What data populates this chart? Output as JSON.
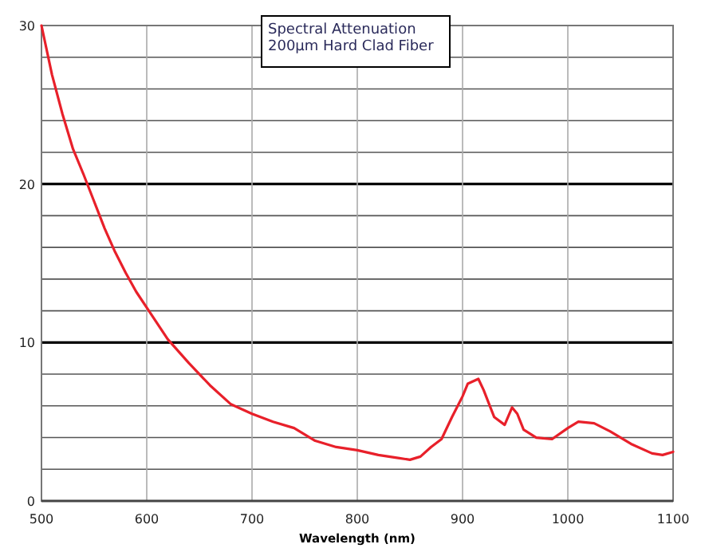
{
  "chart_data": {
    "type": "line",
    "title": "Spectral Attenuation\n200µm Hard Clad Fiber",
    "xlabel": "Wavelength (nm)",
    "xlim": [
      500,
      1100
    ],
    "xticks": [
      500,
      600,
      700,
      800,
      900,
      1000,
      1100
    ],
    "ylim": [
      0,
      30
    ],
    "yticks": [
      0,
      {
        "value": 2,
        "label": null
      },
      {
        "value": 4,
        "label": null
      },
      {
        "value": 6,
        "label": null
      },
      {
        "value": 8,
        "label": null
      },
      10,
      {
        "value": 12,
        "label": null
      },
      {
        "value": 14,
        "label": null
      },
      {
        "value": 16,
        "label": null
      },
      {
        "value": 18,
        "label": null
      },
      20,
      {
        "value": 22,
        "label": null
      },
      {
        "value": 24,
        "label": null
      },
      {
        "value": 26,
        "label": null
      },
      {
        "value": 28,
        "label": null
      },
      30
    ],
    "grid": true,
    "marker": "none",
    "line_style": "solid",
    "series": [
      {
        "color": "#e8202a",
        "x": [
          500,
          510,
          520,
          530,
          540,
          550,
          560,
          570,
          580,
          590,
          600,
          620,
          640,
          660,
          680,
          700,
          720,
          740,
          760,
          780,
          800,
          820,
          840,
          850,
          860,
          870,
          880,
          890,
          900,
          905,
          915,
          920,
          930,
          940,
          947,
          952,
          958,
          970,
          985,
          1000,
          1010,
          1025,
          1040,
          1060,
          1080,
          1090,
          1100
        ],
        "values": [
          30,
          26.9,
          24.4,
          22.2,
          20.6,
          18.9,
          17.2,
          15.7,
          14.4,
          13.2,
          12.2,
          10.2,
          8.7,
          7.3,
          6.1,
          5.5,
          5.0,
          4.6,
          3.8,
          3.4,
          3.2,
          2.9,
          2.7,
          2.6,
          2.8,
          3.4,
          3.9,
          5.3,
          6.6,
          7.4,
          7.7,
          7.0,
          5.3,
          4.8,
          5.9,
          5.5,
          4.5,
          4.0,
          3.9,
          4.6,
          5.0,
          4.9,
          4.4,
          3.6,
          3.0,
          2.9,
          3.1
        ]
      }
    ]
  }
}
